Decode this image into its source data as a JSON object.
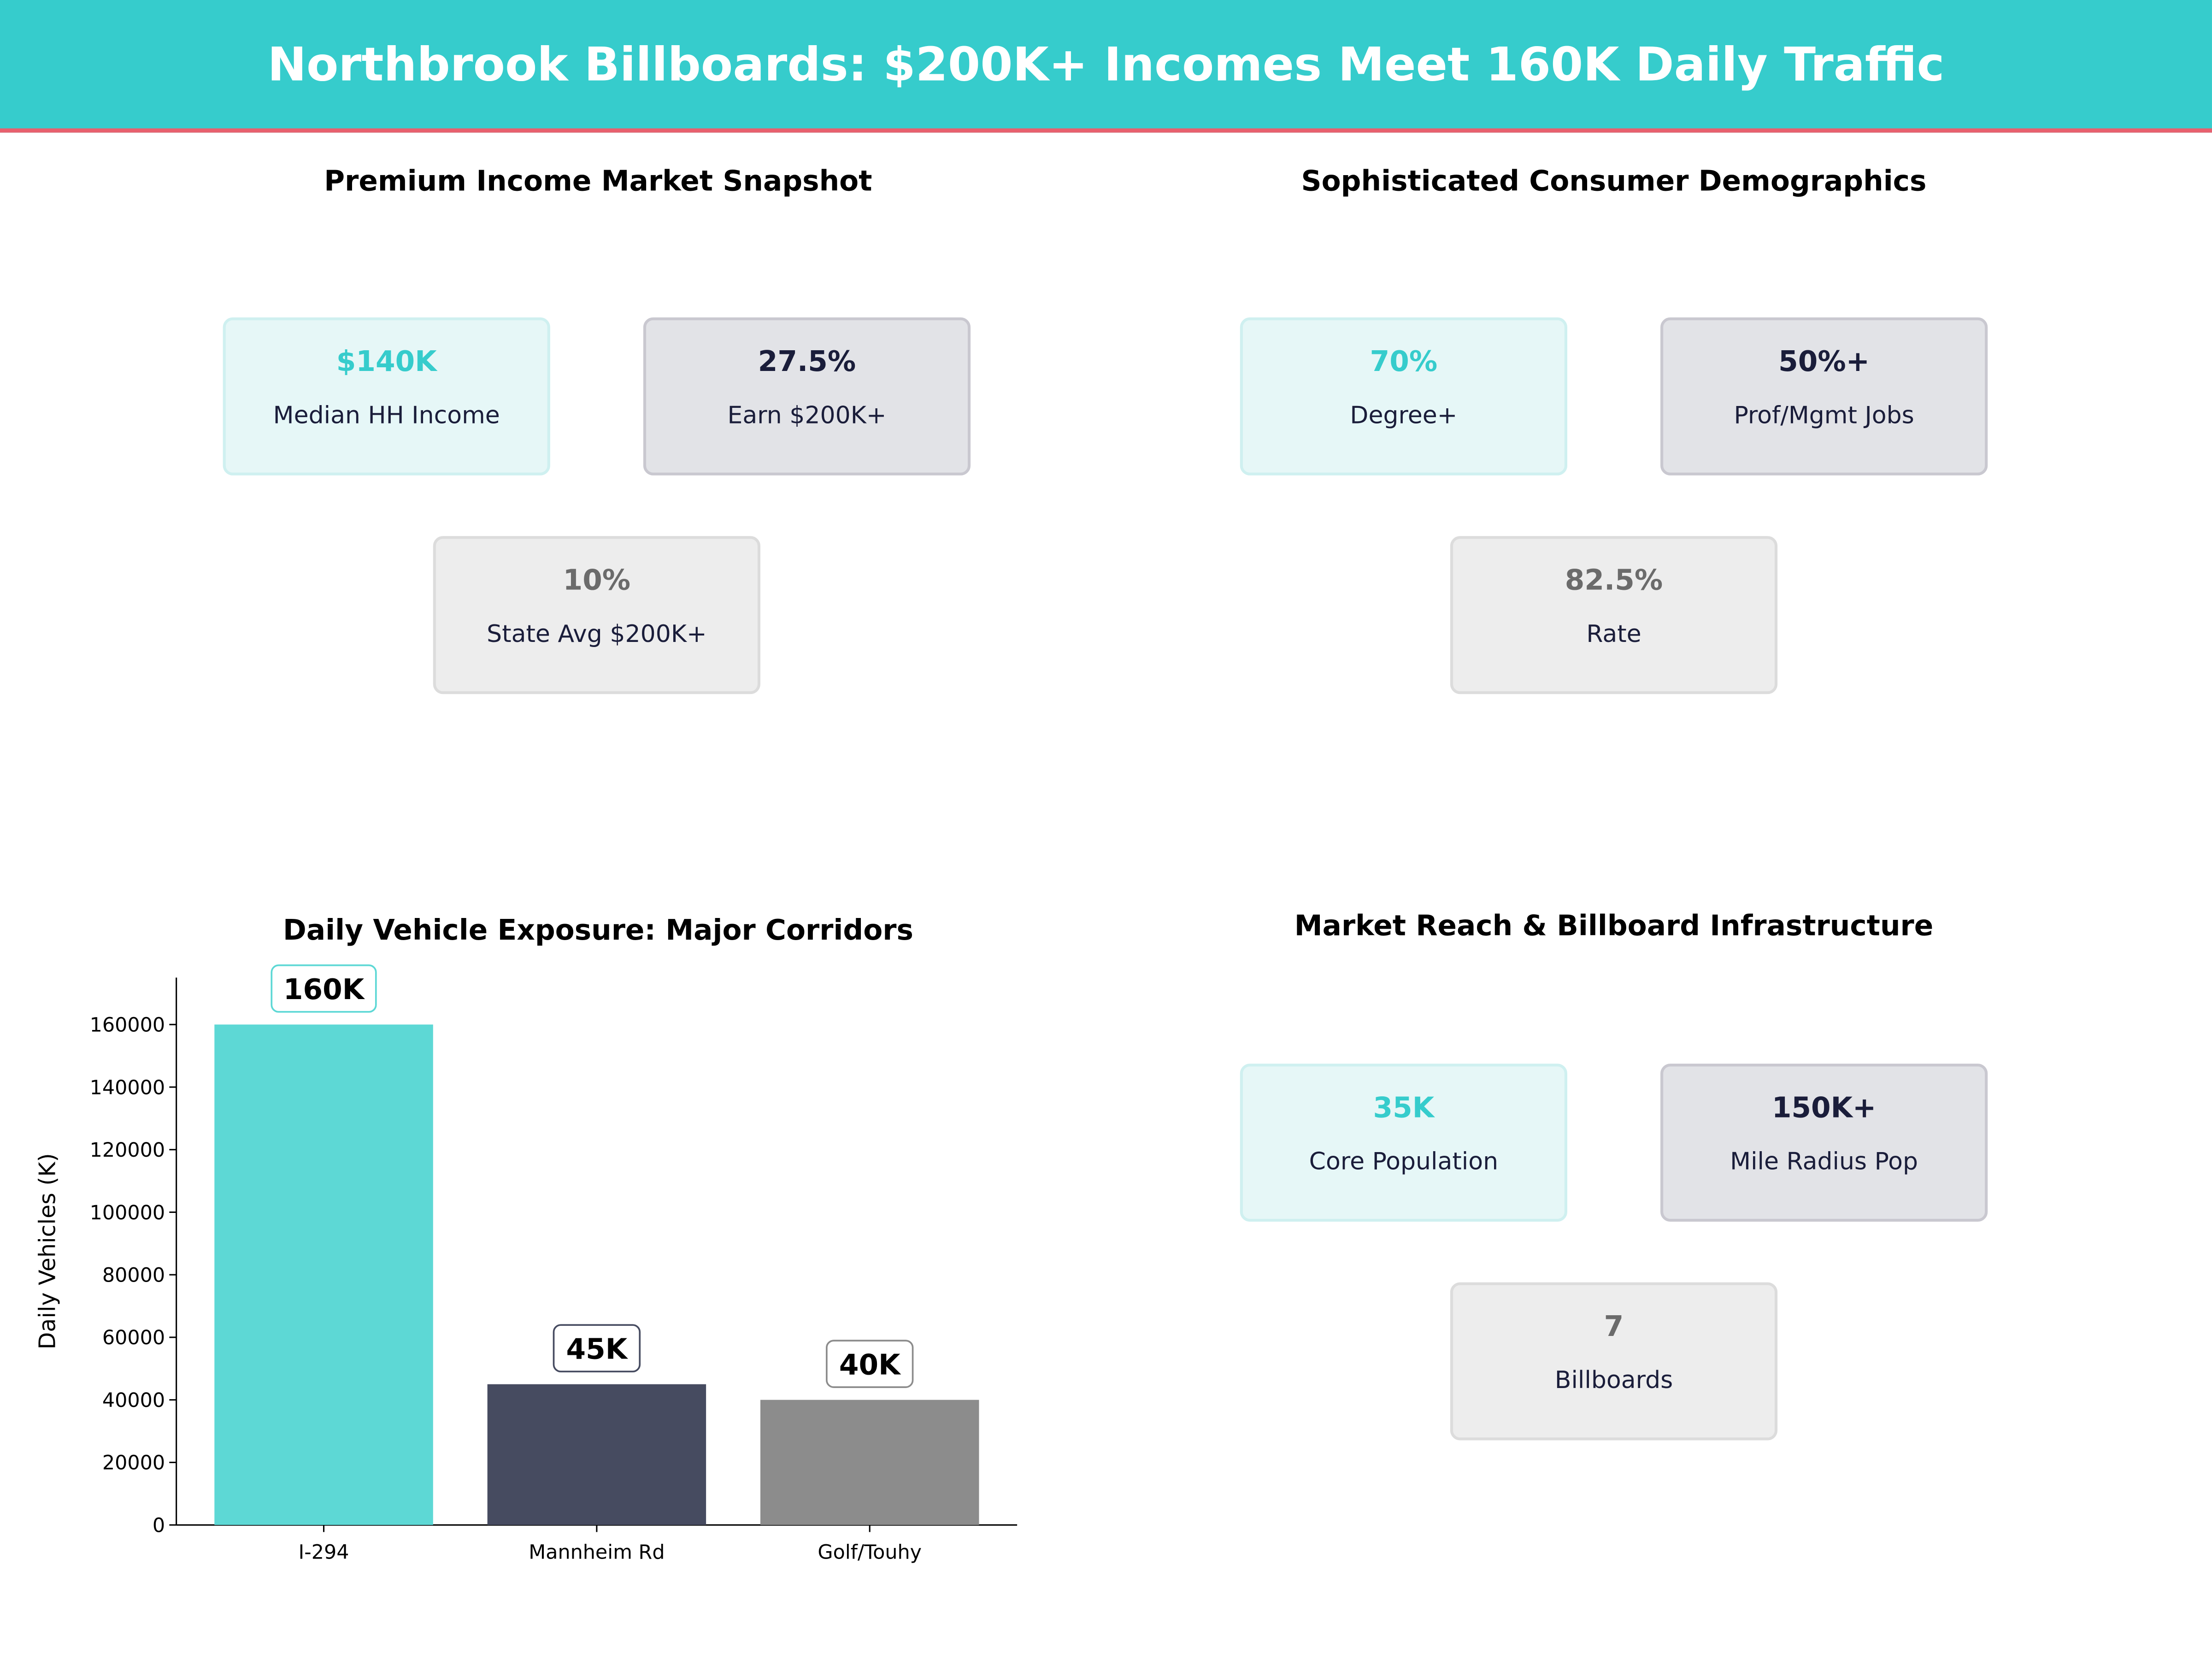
{
  "header": {
    "title": "Northbrook Billboards: $200K+ Incomes Meet 160K Daily Traffic"
  },
  "colors": {
    "teal": "#36CCCC",
    "accent_line": "#E8606E",
    "dark": "#1A1D3A",
    "gray": "#6B6B6B"
  },
  "panels": {
    "income": {
      "title": "Premium Income Market Snapshot",
      "cards": [
        {
          "value": "$140K",
          "label": "Median HH Income"
        },
        {
          "value": "27.5%",
          "label": "Earn $200K+"
        },
        {
          "value": "10%",
          "label": "State Avg $200K+"
        }
      ]
    },
    "demographics": {
      "title": "Sophisticated Consumer Demographics",
      "cards": [
        {
          "value": "70%",
          "label": "Degree+"
        },
        {
          "value": "50%+",
          "label": "Prof/Mgmt Jobs"
        },
        {
          "value": "82.5%",
          "label": "Rate"
        }
      ]
    },
    "reach": {
      "title": "Market Reach & Billboard Infrastructure",
      "cards": [
        {
          "value": "35K",
          "label": "Core Population"
        },
        {
          "value": "150K+",
          "label": "Mile Radius Pop"
        },
        {
          "value": "7",
          "label": "Billboards"
        }
      ]
    }
  },
  "chart_data": {
    "type": "bar",
    "title": "Daily Vehicle Exposure: Major Corridors",
    "xlabel": "",
    "ylabel": "Daily Vehicles (K)",
    "categories": [
      "I-294",
      "Mannheim Rd",
      "Golf/Touhy"
    ],
    "values": [
      160000,
      45000,
      40000
    ],
    "data_labels": [
      "160K",
      "45K",
      "40K"
    ],
    "bar_colors": [
      "#5DD8D5",
      "#464B60",
      "#8C8C8C"
    ],
    "label_border_colors": [
      "#5DD8D5",
      "#464B60",
      "#8C8C8C"
    ],
    "ylim": [
      0,
      175000
    ],
    "yticks": [
      0,
      20000,
      40000,
      60000,
      80000,
      100000,
      120000,
      140000,
      160000
    ],
    "grid": false,
    "legend": "none"
  }
}
